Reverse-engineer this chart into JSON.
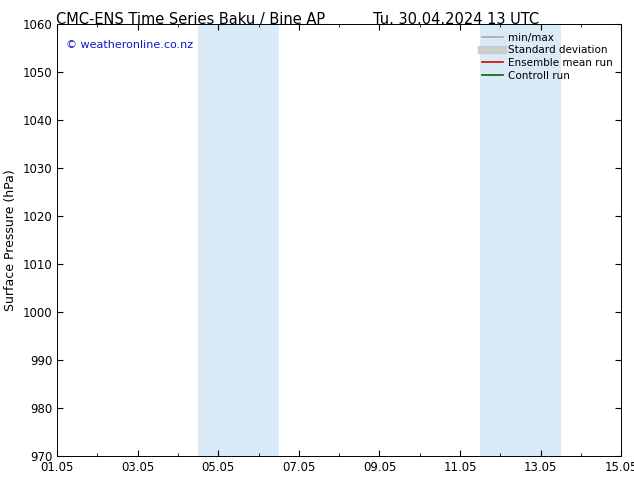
{
  "title_left": "CMC-ENS Time Series Baku / Bine AP",
  "title_right": "Tu. 30.04.2024 13 UTC",
  "ylabel": "Surface Pressure (hPa)",
  "ylim": [
    970,
    1060
  ],
  "yticks": [
    970,
    980,
    990,
    1000,
    1010,
    1020,
    1030,
    1040,
    1050,
    1060
  ],
  "xlim": [
    0,
    14
  ],
  "xtick_positions": [
    0,
    2,
    4,
    6,
    8,
    10,
    12,
    14
  ],
  "xtick_labels": [
    "01.05",
    "03.05",
    "05.05",
    "07.05",
    "09.05",
    "11.05",
    "13.05",
    "15.05"
  ],
  "shade_bands": [
    {
      "xmin": 3.5,
      "xmax": 5.5
    },
    {
      "xmin": 10.5,
      "xmax": 12.5
    }
  ],
  "shade_color": "#daeaf7",
  "watermark_text": "© weatheronline.co.nz",
  "watermark_color": "#1414cc",
  "legend_items": [
    {
      "label": "min/max",
      "color": "#aaaaaa",
      "lw": 1.2,
      "ls": "-"
    },
    {
      "label": "Standard deviation",
      "color": "#cccccc",
      "lw": 6,
      "ls": "-"
    },
    {
      "label": "Ensemble mean run",
      "color": "#dd0000",
      "lw": 1.2,
      "ls": "-"
    },
    {
      "label": "Controll run",
      "color": "#006600",
      "lw": 1.2,
      "ls": "-"
    }
  ],
  "bg_color": "#ffffff",
  "tick_color": "#000000",
  "spine_color": "#000000",
  "title_fontsize": 10.5,
  "tick_fontsize": 8.5,
  "ylabel_fontsize": 9,
  "watermark_fontsize": 8,
  "legend_fontsize": 7.5
}
